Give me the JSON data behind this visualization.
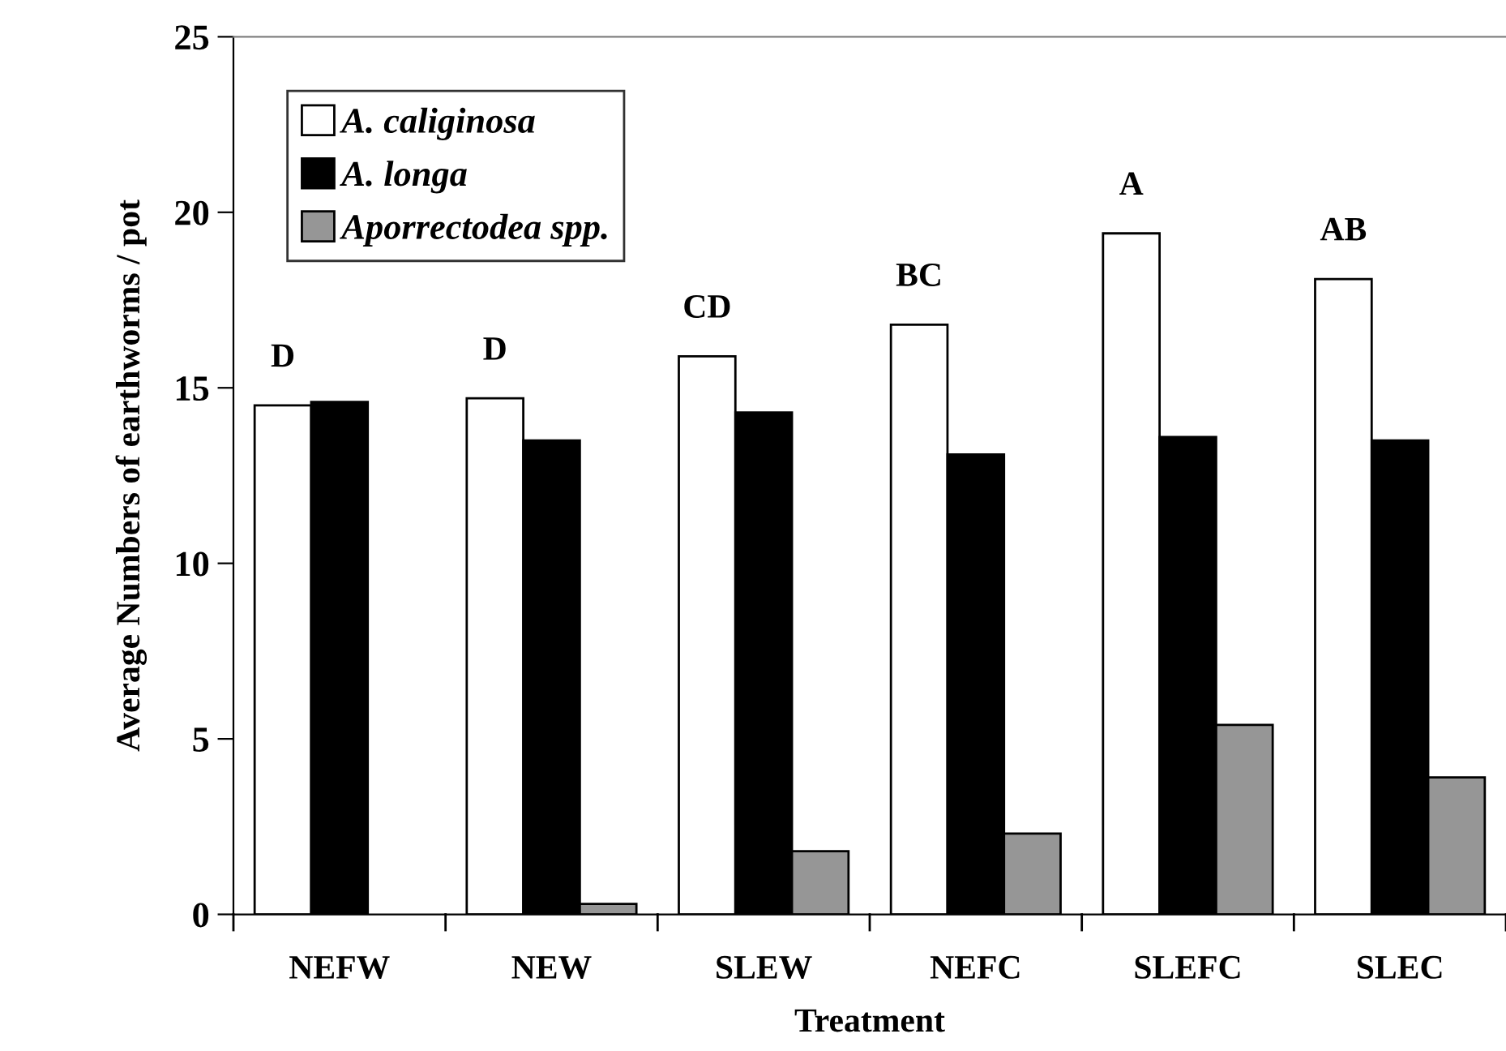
{
  "chart_data": {
    "type": "bar",
    "xlabel": "Treatment",
    "ylabel": "Average Numbers of earthworms / pot",
    "categories": [
      "NEFW",
      "NEW",
      "SLEW",
      "NEFC",
      "SLEFC",
      "SLEC"
    ],
    "series": [
      {
        "name": "A. caliginosa",
        "color": "#ffffff",
        "values": [
          14.5,
          14.7,
          15.9,
          16.8,
          19.4,
          18.1
        ]
      },
      {
        "name": "A. longa",
        "color": "#000000",
        "values": [
          14.6,
          13.5,
          14.3,
          13.1,
          13.6,
          13.5
        ]
      },
      {
        "name": "Aporrectodea spp.",
        "color": "#969696",
        "values": [
          null,
          0.3,
          1.8,
          2.3,
          5.4,
          3.9
        ]
      }
    ],
    "annotations": [
      "D",
      "D",
      "CD",
      "BC",
      "A",
      "AB"
    ],
    "ylim": [
      0,
      25
    ],
    "yticks": [
      0,
      5,
      10,
      15,
      20,
      25
    ],
    "grid": false,
    "legend": "top left"
  }
}
